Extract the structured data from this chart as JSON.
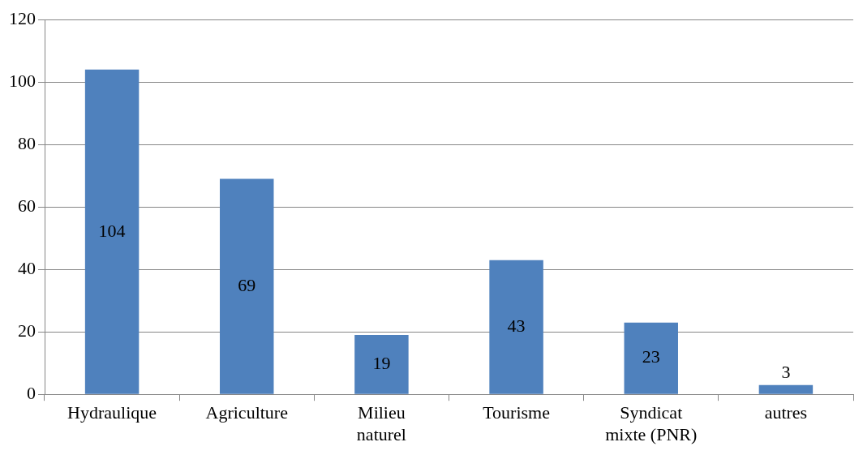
{
  "chart_data": {
    "type": "bar",
    "categories": [
      "Hydraulique",
      "Agriculture",
      "Milieu naturel",
      "Tourisme",
      "Syndicat mixte (PNR)",
      "autres"
    ],
    "values": [
      104,
      69,
      19,
      43,
      23,
      3
    ],
    "color": "#4f81bd",
    "ylim": [
      0,
      120
    ],
    "yticks": [
      0,
      20,
      40,
      60,
      80,
      100,
      120
    ],
    "grid": "y",
    "data_labels": true,
    "legend": false
  }
}
